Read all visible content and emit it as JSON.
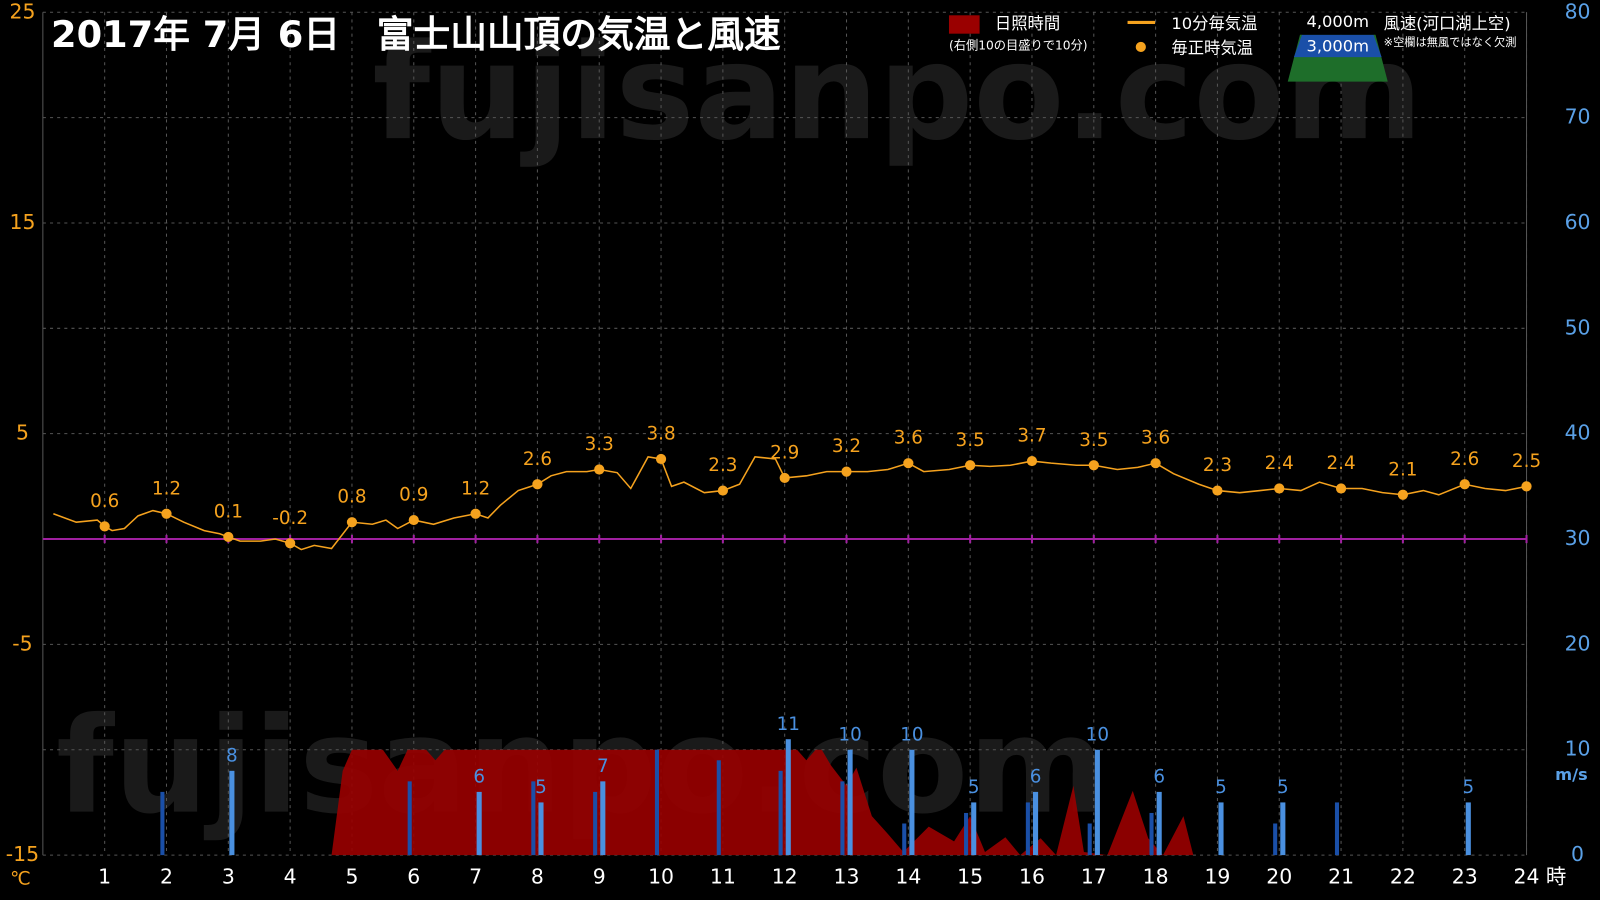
{
  "chart_data": {
    "type": "line",
    "title": "2017年  7月  6日　富士山山頂の気温と風速",
    "watermarks": [
      "fujisanpo.com",
      "fujisanpo.com"
    ],
    "ylabel": "℃",
    "y2label": "m/s",
    "x_unit": "時",
    "legend_note": "(右側10の目盛りで10分)",
    "wind_title": "風速(河口湖上空)",
    "wind_note": "※空欄は無風ではなく欠測",
    "xlim": [
      0,
      24
    ],
    "xticks": [
      1,
      2,
      3,
      4,
      5,
      6,
      7,
      8,
      9,
      10,
      11,
      12,
      13,
      14,
      15,
      16,
      17,
      18,
      19,
      20,
      21,
      22,
      23,
      24
    ],
    "ylim": [
      -15,
      25
    ],
    "yticks": [
      25,
      15,
      5,
      -5,
      -15
    ],
    "y2lim": [
      0,
      80
    ],
    "y2ticks": [
      0,
      10,
      20,
      30,
      40,
      50,
      60,
      70,
      80
    ],
    "grid": true,
    "zero_line_color": "#a020a0",
    "series": [
      {
        "name": "日照時間",
        "type": "area",
        "axis": "y2",
        "color": "#9a0000",
        "x": [
          4.67,
          4.85,
          5.0,
          5.5,
          5.74,
          5.9,
          6.2,
          6.35,
          6.5,
          11.9,
          12.2,
          12.35,
          12.5,
          12.6,
          12.75,
          13.0,
          13.16,
          13.41,
          13.67,
          13.92,
          14.33,
          14.74,
          15.0,
          15.24,
          15.57,
          15.81,
          16.14,
          16.39,
          16.67,
          16.84,
          17.22,
          17.63,
          17.88,
          18.12,
          18.45,
          18.61
        ],
        "values": [
          0,
          8,
          10,
          10,
          8,
          10,
          10,
          9,
          10,
          10,
          10,
          9,
          10,
          10,
          8.5,
          6.6,
          8.3,
          3.7,
          2,
          0.3,
          2.7,
          1.3,
          3.7,
          0.3,
          1.7,
          0,
          1.6,
          0,
          6.6,
          0.3,
          0,
          6.1,
          1.6,
          0,
          3.7,
          0
        ]
      },
      {
        "name": "10分毎気温",
        "type": "line",
        "color": "#f5a21e",
        "x": [
          0.17,
          0.54,
          0.88,
          1.0,
          1.12,
          1.32,
          1.54,
          1.78,
          2.0,
          2.28,
          2.61,
          2.86,
          3.0,
          3.19,
          3.52,
          3.76,
          4.0,
          4.18,
          4.39,
          4.67,
          5.0,
          5.33,
          5.55,
          5.74,
          6.0,
          6.32,
          6.65,
          7.0,
          7.2,
          7.4,
          7.69,
          8.0,
          8.22,
          8.47,
          8.8,
          9.0,
          9.29,
          9.51,
          9.79,
          10.0,
          10.17,
          10.37,
          10.7,
          11.0,
          11.27,
          11.52,
          11.85,
          12.0,
          12.35,
          12.68,
          13.0,
          13.34,
          13.67,
          14.0,
          14.25,
          14.66,
          15.0,
          15.32,
          15.65,
          16.0,
          16.31,
          16.72,
          17.0,
          17.38,
          17.71,
          18.0,
          18.29,
          18.7,
          19.0,
          19.36,
          19.69,
          20.0,
          20.35,
          20.65,
          21.0,
          21.34,
          21.67,
          22.0,
          22.33,
          22.58,
          23.0,
          23.33,
          23.66,
          24.0
        ],
        "values": [
          1.2,
          0.8,
          0.9,
          0.6,
          0.4,
          0.5,
          1.1,
          1.35,
          1.2,
          0.8,
          0.4,
          0.25,
          0.1,
          -0.1,
          -0.1,
          0,
          -0.2,
          -0.5,
          -0.3,
          -0.45,
          0.8,
          0.7,
          0.9,
          0.5,
          0.9,
          0.7,
          1.0,
          1.2,
          1.0,
          1.6,
          2.3,
          2.6,
          3.0,
          3.2,
          3.2,
          3.3,
          3.15,
          2.4,
          3.9,
          3.8,
          2.5,
          2.7,
          2.2,
          2.3,
          2.6,
          3.9,
          3.8,
          2.9,
          3.0,
          3.2,
          3.2,
          3.2,
          3.3,
          3.6,
          3.2,
          3.3,
          3.5,
          3.45,
          3.5,
          3.7,
          3.6,
          3.5,
          3.5,
          3.3,
          3.4,
          3.6,
          3.1,
          2.6,
          2.3,
          2.2,
          2.3,
          2.4,
          2.3,
          2.7,
          2.4,
          2.4,
          2.2,
          2.1,
          2.3,
          2.1,
          2.6,
          2.4,
          2.3,
          2.5
        ]
      },
      {
        "name": "毎正時気温",
        "type": "scatter",
        "color": "#f5a21e",
        "labels": true,
        "x": [
          1,
          2,
          3,
          4,
          5,
          6,
          7,
          8,
          9,
          10,
          11,
          12,
          13,
          14,
          15,
          16,
          17,
          18,
          19,
          20,
          21,
          22,
          23,
          24
        ],
        "values": [
          0.6,
          1.2,
          0.1,
          -0.2,
          0.8,
          0.9,
          1.2,
          2.6,
          3.3,
          3.8,
          2.3,
          2.9,
          3.2,
          3.6,
          3.5,
          3.7,
          3.5,
          3.6,
          2.3,
          2.4,
          2.4,
          2.1,
          2.6,
          2.5
        ]
      },
      {
        "name": "4,000m",
        "type": "bar",
        "axis": "y2",
        "color": "#4a90e0",
        "labels": true,
        "x": [
          1,
          2,
          3,
          4,
          5,
          6,
          7,
          8,
          9,
          10,
          11,
          12,
          13,
          14,
          15,
          16,
          17,
          18,
          19,
          20,
          21,
          22,
          23,
          24
        ],
        "values": [
          null,
          null,
          8,
          null,
          null,
          null,
          6,
          5,
          7,
          null,
          null,
          11,
          10,
          10,
          5,
          6,
          10,
          6,
          5,
          5,
          null,
          null,
          5,
          null
        ]
      },
      {
        "name": "3,000m",
        "type": "bar",
        "axis": "y2",
        "color": "#1a4fa8",
        "x": [
          1,
          2,
          3,
          4,
          5,
          6,
          7,
          8,
          9,
          10,
          11,
          12,
          13,
          14,
          15,
          16,
          17,
          18,
          19,
          20,
          21,
          22,
          23,
          24
        ],
        "values": [
          null,
          6,
          null,
          null,
          null,
          7,
          null,
          7,
          6,
          10,
          9,
          8,
          7,
          3,
          4,
          5,
          3,
          4,
          null,
          3,
          5,
          null,
          null,
          null
        ]
      }
    ]
  }
}
